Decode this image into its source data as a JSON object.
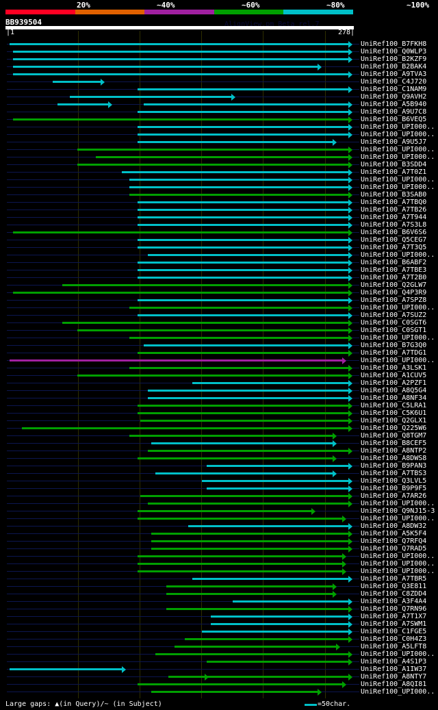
{
  "header": {
    "pcts": [
      "20%",
      "~40%",
      "~60%",
      "~80%",
      "~100%"
    ],
    "colors": [
      "#ff0022",
      "#e06000",
      "#a020a0",
      "#00a000",
      "#00c0c8"
    ],
    "query_id": "BB939504",
    "version": "AlignView.pm Beta rel.7",
    "start": "|1",
    "end": "278|"
  },
  "query_length": 278,
  "color_map": {
    "c": "#00c0c8",
    "g": "#00a000",
    "p": "#a020a0"
  },
  "rows": [
    {
      "id": "UniRef100_B7FKH8",
      "c": "c",
      "s": [
        [
          1,
          276
        ]
      ]
    },
    {
      "id": "UniRef100_Q0WLP3",
      "c": "c",
      "s": [
        [
          4,
          276
        ]
      ]
    },
    {
      "id": "UniRef100_B2KZF9",
      "c": "c",
      "s": [
        [
          4,
          276
        ]
      ]
    },
    {
      "id": "UniRef100_B2BAK4",
      "c": "c",
      "s": [
        [
          4,
          251
        ]
      ]
    },
    {
      "id": "UniRef100_A9TVA3",
      "c": "c",
      "s": [
        [
          4,
          276
        ]
      ]
    },
    {
      "id": "UniRef100_C4J720",
      "c": "c",
      "s": [
        [
          36,
          75
        ]
      ]
    },
    {
      "id": "UniRef100_C1NAM9",
      "c": "c",
      "s": [
        [
          105,
          276
        ]
      ]
    },
    {
      "id": "UniRef100_Q9AVH2",
      "c": "c",
      "s": [
        [
          50,
          181
        ]
      ]
    },
    {
      "id": "UniRef100_A5B940",
      "c": "c",
      "s": [
        [
          40,
          81
        ],
        [
          110,
          276
        ]
      ]
    },
    {
      "id": "UniRef100_A9U7C8",
      "c": "c",
      "s": [
        [
          105,
          276
        ]
      ]
    },
    {
      "id": "UniRef100_B6VEQ5",
      "c": "g",
      "s": [
        [
          4,
          276
        ]
      ]
    },
    {
      "id": "UniRef100_UPI000..",
      "c": "c",
      "s": [
        [
          105,
          276
        ]
      ]
    },
    {
      "id": "UniRef100_UPI000..",
      "c": "c",
      "s": [
        [
          105,
          276
        ]
      ]
    },
    {
      "id": "UniRef100_A9U5J7",
      "c": "c",
      "s": [
        [
          105,
          263
        ]
      ]
    },
    {
      "id": "UniRef100_UPI000..",
      "c": "g",
      "s": [
        [
          56,
          276
        ]
      ]
    },
    {
      "id": "UniRef100_UPI000..",
      "c": "g",
      "s": [
        [
          71,
          276
        ]
      ]
    },
    {
      "id": "UniRef100_B3SDD4",
      "c": "g",
      "s": [
        [
          56,
          276
        ]
      ]
    },
    {
      "id": "UniRef100_A7T0Z1",
      "c": "c",
      "s": [
        [
          92,
          276
        ]
      ]
    },
    {
      "id": "UniRef100_UPI000..",
      "c": "c",
      "s": [
        [
          98,
          276
        ]
      ]
    },
    {
      "id": "UniRef100_UPI000..",
      "c": "c",
      "s": [
        [
          98,
          276
        ]
      ]
    },
    {
      "id": "UniRef100_B3SAB0",
      "c": "g",
      "s": [
        [
          98,
          276
        ]
      ]
    },
    {
      "id": "UniRef100_A7TBQ0",
      "c": "c",
      "s": [
        [
          105,
          276
        ]
      ]
    },
    {
      "id": "UniRef100_A7TB26",
      "c": "c",
      "s": [
        [
          105,
          276
        ]
      ]
    },
    {
      "id": "UniRef100_A7T944",
      "c": "c",
      "s": [
        [
          105,
          276
        ]
      ]
    },
    {
      "id": "UniRef100_A7S3L8",
      "c": "c",
      "s": [
        [
          105,
          276
        ]
      ]
    },
    {
      "id": "UniRef100_B6V6S6",
      "c": "g",
      "s": [
        [
          4,
          276
        ]
      ]
    },
    {
      "id": "UniRef100_Q5CEG7",
      "c": "c",
      "s": [
        [
          105,
          276
        ]
      ]
    },
    {
      "id": "UniRef100_A7T3Q5",
      "c": "c",
      "s": [
        [
          105,
          276
        ]
      ]
    },
    {
      "id": "UniRef100_UPI000..",
      "c": "c",
      "s": [
        [
          113,
          276
        ]
      ]
    },
    {
      "id": "UniRef100_B6ABF2",
      "c": "c",
      "s": [
        [
          105,
          276
        ]
      ]
    },
    {
      "id": "UniRef100_A7TBE3",
      "c": "c",
      "s": [
        [
          105,
          276
        ]
      ]
    },
    {
      "id": "UniRef100_A7T2B0",
      "c": "c",
      "s": [
        [
          105,
          276
        ]
      ]
    },
    {
      "id": "UniRef100_Q2GLW7",
      "c": "g",
      "s": [
        [
          44,
          276
        ]
      ]
    },
    {
      "id": "UniRef100_Q4P3R9",
      "c": "g",
      "s": [
        [
          4,
          276
        ]
      ]
    },
    {
      "id": "UniRef100_A7SPZ8",
      "c": "c",
      "s": [
        [
          105,
          276
        ]
      ]
    },
    {
      "id": "UniRef100_UPI000..",
      "c": "g",
      "s": [
        [
          98,
          276
        ]
      ]
    },
    {
      "id": "UniRef100_A7SUZ2",
      "c": "c",
      "s": [
        [
          105,
          276
        ]
      ]
    },
    {
      "id": "UniRef100_C0SGT6",
      "c": "g",
      "s": [
        [
          44,
          276
        ]
      ]
    },
    {
      "id": "UniRef100_C0SGT1",
      "c": "g",
      "s": [
        [
          56,
          276
        ]
      ]
    },
    {
      "id": "UniRef100_UPI000..",
      "c": "g",
      "s": [
        [
          98,
          276
        ]
      ]
    },
    {
      "id": "UniRef100_B7G3Q0",
      "c": "c",
      "s": [
        [
          110,
          276
        ]
      ]
    },
    {
      "id": "UniRef100_A7TDG1",
      "c": "g",
      "s": [
        [
          105,
          276
        ]
      ]
    },
    {
      "id": "UniRef100_UPI000..",
      "c": "p",
      "s": [
        [
          1,
          271
        ]
      ]
    },
    {
      "id": "UniRef100_A3LSK1",
      "c": "g",
      "s": [
        [
          98,
          276
        ]
      ]
    },
    {
      "id": "UniRef100_A1CUV5",
      "c": "g",
      "s": [
        [
          56,
          276
        ]
      ]
    },
    {
      "id": "UniRef100_A2PZF1",
      "c": "c",
      "s": [
        [
          149,
          276
        ]
      ]
    },
    {
      "id": "UniRef100_A8Q5G4",
      "c": "c",
      "s": [
        [
          113,
          276
        ]
      ]
    },
    {
      "id": "UniRef100_A8NF34",
      "c": "c",
      "s": [
        [
          113,
          276
        ]
      ]
    },
    {
      "id": "UniRef100_C5LRA1",
      "c": "g",
      "s": [
        [
          105,
          276
        ]
      ]
    },
    {
      "id": "UniRef100_C5K6U1",
      "c": "g",
      "s": [
        [
          105,
          276
        ]
      ]
    },
    {
      "id": "UniRef100_Q2GLX1",
      "c": "g",
      "s": [
        [
          107,
          276
        ]
      ]
    },
    {
      "id": "UniRef100_Q225W6",
      "c": "g",
      "s": [
        [
          11,
          276
        ]
      ]
    },
    {
      "id": "UniRef100_Q8TGM7",
      "c": "g",
      "s": [
        [
          98,
          263
        ]
      ]
    },
    {
      "id": "UniRef100_B8CEF5",
      "c": "c",
      "s": [
        [
          116,
          263
        ]
      ]
    },
    {
      "id": "UniRef100_A8NTP2",
      "c": "g",
      "s": [
        [
          113,
          276
        ]
      ]
    },
    {
      "id": "UniRef100_A8DWS8",
      "c": "g",
      "s": [
        [
          105,
          263
        ]
      ]
    },
    {
      "id": "UniRef100_B9PAN3",
      "c": "c",
      "s": [
        [
          161,
          276
        ]
      ]
    },
    {
      "id": "UniRef100_A7TBS3",
      "c": "c",
      "s": [
        [
          119,
          263
        ]
      ]
    },
    {
      "id": "UniRef100_Q3LVL5",
      "c": "c",
      "s": [
        [
          157,
          276
        ]
      ]
    },
    {
      "id": "UniRef100_B9P9F5",
      "c": "c",
      "s": [
        [
          161,
          276
        ]
      ]
    },
    {
      "id": "UniRef100_A7AR26",
      "c": "g",
      "s": [
        [
          107,
          276
        ]
      ]
    },
    {
      "id": "UniRef100_UPI000..",
      "c": "g",
      "s": [
        [
          113,
          276
        ]
      ]
    },
    {
      "id": "UniRef100_Q9NJ15-3",
      "c": "g",
      "s": [
        [
          105,
          246
        ]
      ]
    },
    {
      "id": "UniRef100_UPI000..",
      "c": "g",
      "s": [
        [
          105,
          271
        ]
      ]
    },
    {
      "id": "UniRef100_A8DW32",
      "c": "c",
      "s": [
        [
          146,
          276
        ]
      ]
    },
    {
      "id": "UniRef100_A5K5F4",
      "c": "g",
      "s": [
        [
          116,
          276
        ]
      ]
    },
    {
      "id": "UniRef100_Q7RFQ4",
      "c": "g",
      "s": [
        [
          116,
          276
        ]
      ]
    },
    {
      "id": "UniRef100_Q7RAD5",
      "c": "g",
      "s": [
        [
          116,
          276
        ]
      ]
    },
    {
      "id": "UniRef100_UPI000..",
      "c": "g",
      "s": [
        [
          105,
          271
        ]
      ]
    },
    {
      "id": "UniRef100_UPI000..",
      "c": "g",
      "s": [
        [
          105,
          271
        ]
      ]
    },
    {
      "id": "UniRef100_UPI000..",
      "c": "g",
      "s": [
        [
          105,
          271
        ]
      ]
    },
    {
      "id": "UniRef100_A7TBR5",
      "c": "c",
      "s": [
        [
          149,
          276
        ]
      ]
    },
    {
      "id": "UniRef100_Q3E811",
      "c": "g",
      "s": [
        [
          128,
          263
        ]
      ]
    },
    {
      "id": "UniRef100_C8ZDD4",
      "c": "g",
      "s": [
        [
          128,
          263
        ]
      ]
    },
    {
      "id": "UniRef100_A3F4A4",
      "c": "c",
      "s": [
        [
          182,
          276
        ]
      ]
    },
    {
      "id": "UniRef100_Q7RN96",
      "c": "g",
      "s": [
        [
          128,
          276
        ]
      ]
    },
    {
      "id": "UniRef100_A7T1X7",
      "c": "c",
      "s": [
        [
          164,
          276
        ]
      ]
    },
    {
      "id": "UniRef100_A7SWM1",
      "c": "c",
      "s": [
        [
          164,
          276
        ]
      ]
    },
    {
      "id": "UniRef100_C1FGE5",
      "c": "c",
      "s": [
        [
          157,
          276
        ]
      ]
    },
    {
      "id": "UniRef100_C0H4Z3",
      "c": "g",
      "s": [
        [
          143,
          276
        ]
      ]
    },
    {
      "id": "UniRef100_A5LFT8",
      "c": "g",
      "s": [
        [
          135,
          266
        ]
      ]
    },
    {
      "id": "UniRef100_UPI000..",
      "c": "g",
      "s": [
        [
          119,
          276
        ]
      ]
    },
    {
      "id": "UniRef100_A4S1P3",
      "c": "g",
      "s": [
        [
          161,
          276
        ]
      ]
    },
    {
      "id": "UniRef100_A1IW37",
      "c": "c",
      "s": [
        [
          1,
          92
        ]
      ]
    },
    {
      "id": "UniRef100_A8NTY7",
      "c": "g",
      "s": [
        [
          130,
          159
        ],
        [
          161,
          276
        ]
      ]
    },
    {
      "id": "UniRef100_A8QI81",
      "c": "g",
      "s": [
        [
          105,
          271
        ]
      ]
    },
    {
      "id": "UniRef100_UPI000..",
      "c": "g",
      "s": [
        [
          116,
          251
        ]
      ]
    }
  ],
  "footer": {
    "legend": "Large gaps: ▲(in Query)/~ (in Subject)",
    "scale": "=50char."
  }
}
